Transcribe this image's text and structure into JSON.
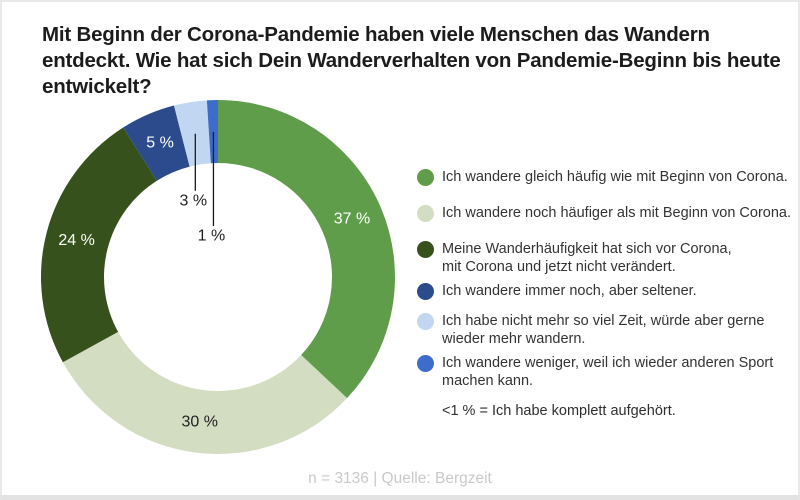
{
  "header": {
    "title": "Mit Beginn der Corona-Pandemie haben viele Menschen das Wandern entdeckt. Wie hat sich Dein Wanderverhalten von Pandemie-Beginn bis heute entwickelt?",
    "title_lines": [
      "Mit Beginn der Corona-Pandemie haben viele Menschen das Wandern",
      "entdeckt. Wie hat sich Dein Wanderverhalten von Pandemie-Beginn bis heute",
      "entwickelt?"
    ]
  },
  "chart_data": {
    "type": "pie",
    "style": "donut",
    "direction": "clockwise",
    "start_angle_deg": 0,
    "legend_position": "right",
    "categories": [
      "Ich wandere gleich häufig wie mit Beginn von Corona.",
      "Ich wandere noch häufiger als mit Beginn von Corona.",
      "Meine Wanderhäufigkeit hat sich vor Corona, mit Corona und jetzt nicht verändert.",
      "Ich wandere immer noch, aber seltener.",
      "Ich habe nicht mehr so viel Zeit, würde aber gerne wieder mehr wandern.",
      "Ich wandere weniger, weil ich wieder anderen Sport machen kann."
    ],
    "values": [
      37,
      30,
      24,
      5,
      3,
      1
    ],
    "unit": "%",
    "pct_labels": [
      "37 %",
      "30 %",
      "24 %",
      "5 %",
      "3 %",
      "1 %"
    ],
    "slice_colors": [
      "#5F9D4B",
      "#D3DDC2",
      "#36511B",
      "#2C4B8C",
      "#C1D6F1",
      "#3E6CCB"
    ],
    "pct_label_colors": [
      "#FFFFFF",
      "#1F1F1F",
      "#FFFFFF",
      "#FFFFFF",
      "#1F1F1F",
      "#1F1F1F"
    ],
    "legend_lines": [
      [
        "Ich wandere gleich häufig wie mit Beginn von Corona."
      ],
      [
        "Ich wandere noch häufiger als mit Beginn von Corona."
      ],
      [
        "Meine Wanderhäufigkeit hat sich vor Corona,",
        "mit Corona und jetzt nicht verändert."
      ],
      [
        "Ich wandere immer noch, aber seltener."
      ],
      [
        "Ich habe nicht mehr so viel Zeit, würde aber gerne",
        "wieder mehr wandern."
      ],
      [
        "Ich wandere weniger, weil ich wieder anderen Sport",
        "machen kann."
      ]
    ],
    "note": "<1 % = Ich habe komplett aufgehört."
  },
  "footer": {
    "source_label": "n = 3136 | Quelle: Bergzeit"
  }
}
